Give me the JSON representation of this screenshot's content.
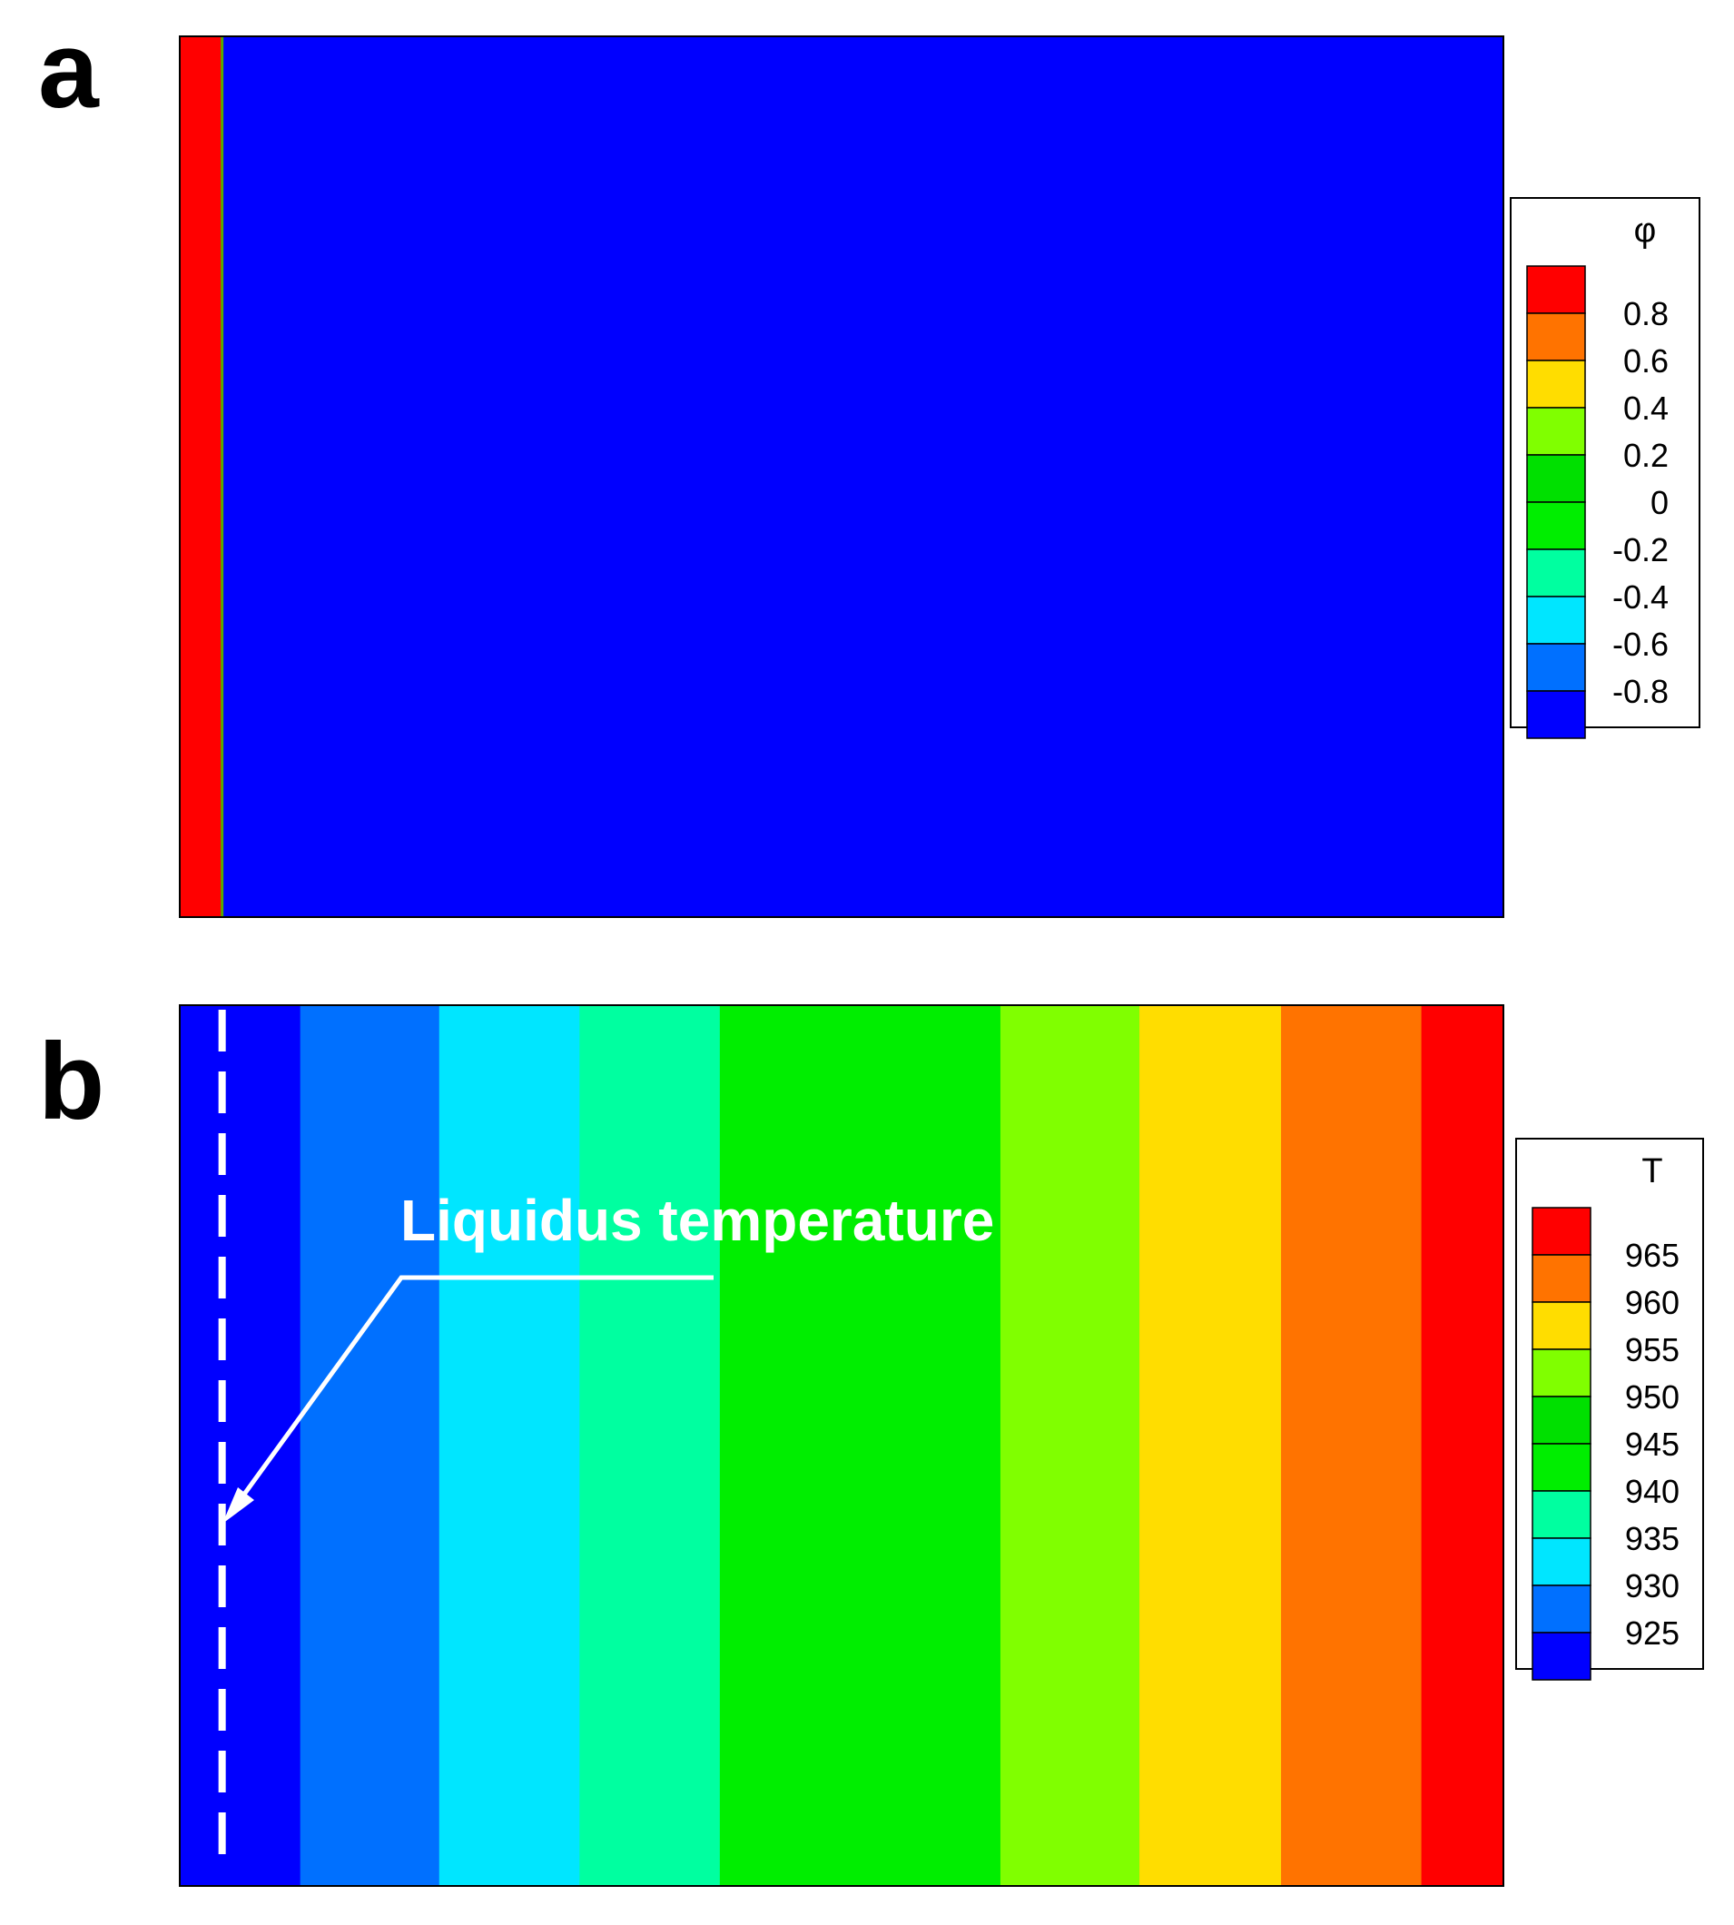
{
  "panels": [
    {
      "label": "a",
      "legend": {
        "title": "φ",
        "tick_labels": [
          "0.8",
          "0.6",
          "0.4",
          "0.2",
          "0",
          "-0.2",
          "-0.4",
          "-0.6",
          "-0.8"
        ]
      }
    },
    {
      "label": "b",
      "annotation": "Liquidus temperature",
      "legend": {
        "title": "T",
        "tick_labels": [
          "965",
          "960",
          "955",
          "950",
          "945",
          "940",
          "935",
          "930",
          "925"
        ]
      }
    }
  ],
  "chart_data": [
    {
      "type": "heatmap",
      "panel": "a",
      "variable": "φ",
      "legend_levels": [
        1.0,
        0.8,
        0.6,
        0.4,
        0.2,
        0,
        -0.2,
        -0.4,
        -0.6,
        -0.8
      ],
      "legend_colors": [
        "#ff0000",
        "#ff7300",
        "#ffdd00",
        "#80ff00",
        "#00e000",
        "#00ee00",
        "#00ffa0",
        "#00e6ff",
        "#0070ff",
        "#0000ff"
      ],
      "x_fraction_bounds": [
        0,
        0.032,
        1.0
      ],
      "band_values": [
        1.0,
        -1.0
      ],
      "band_colors": [
        "#ff0000",
        "#0000ff"
      ],
      "interface_color": "#55aa00",
      "legend_position": "right"
    },
    {
      "type": "heatmap",
      "panel": "b",
      "variable": "T",
      "legend_levels": [
        967.5,
        965,
        960,
        955,
        950,
        945,
        940,
        935,
        930,
        925
      ],
      "legend_colors": [
        "#ff0000",
        "#ff7300",
        "#ffdd00",
        "#80ff00",
        "#00e000",
        "#00ee00",
        "#00ffa0",
        "#00e6ff",
        "#0070ff",
        "#0000ff"
      ],
      "x_fraction_bounds": [
        0,
        0.091,
        0.196,
        0.302,
        0.408,
        0.62,
        0.725,
        0.832,
        0.938,
        1.0
      ],
      "band_values": [
        925,
        930,
        935,
        940,
        945,
        950,
        955,
        960,
        965
      ],
      "band_colors": [
        "#0000ff",
        "#0070ff",
        "#00e6ff",
        "#00ffa0",
        "#00ee00",
        "#80ff00",
        "#ffdd00",
        "#ff7300",
        "#ff0000"
      ],
      "liquidus_marker": {
        "x_fraction": 0.032,
        "style": "dashed",
        "color": "#ffffff"
      },
      "legend_position": "right"
    }
  ]
}
